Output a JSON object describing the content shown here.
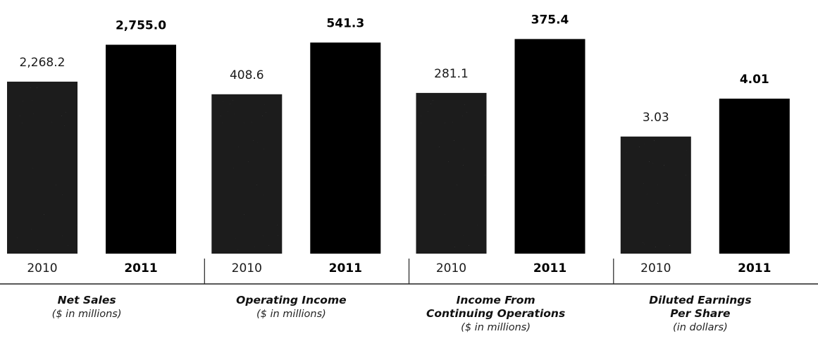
{
  "colors": {
    "bar_2010": "#1c1c1c",
    "bar_2011": "#000000",
    "rule": "#222222"
  },
  "chart_data": [
    {
      "type": "bar",
      "categories": [
        "2010",
        "2011"
      ],
      "values": [
        2268.2,
        2755.0
      ],
      "value_labels": [
        "2,268.2",
        "2,755.0"
      ],
      "title": "Net Sales",
      "subtitle": [
        "($ in millions)"
      ],
      "ylim": [
        0,
        2880
      ]
    },
    {
      "type": "bar",
      "categories": [
        "2010",
        "2011"
      ],
      "values": [
        408.6,
        541.3
      ],
      "value_labels": [
        "408.6",
        "541.3"
      ],
      "title": "Operating Income",
      "subtitle": [
        "($ in millions)"
      ],
      "ylim": [
        0,
        560
      ]
    },
    {
      "type": "bar",
      "categories": [
        "2010",
        "2011"
      ],
      "values": [
        281.1,
        375.4
      ],
      "value_labels": [
        "281.1",
        "375.4"
      ],
      "title": "Income From",
      "subtitle": [
        "Continuing Operations",
        "($ in millions)"
      ],
      "ylim": [
        0,
        382
      ]
    },
    {
      "type": "bar",
      "categories": [
        "2010",
        "2011"
      ],
      "values": [
        3.03,
        4.01
      ],
      "value_labels": [
        "3.03",
        "4.01"
      ],
      "title": "Diluted Earnings",
      "subtitle": [
        "Per Share",
        "(in dollars)"
      ],
      "ylim": [
        0,
        5.65
      ]
    }
  ]
}
